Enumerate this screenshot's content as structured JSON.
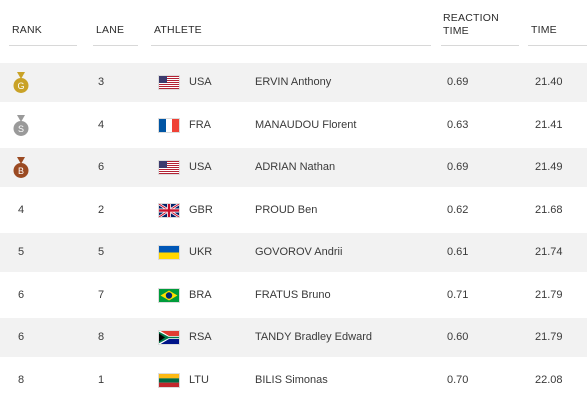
{
  "headers": {
    "rank": "RANK",
    "lane": "LANE",
    "athlete": "ATHLETE",
    "reaction_line1": "REACTION",
    "reaction_line2": "TIME",
    "time": "TIME"
  },
  "rows": [
    {
      "rank": "",
      "medal": "gold",
      "medal_letter": "G",
      "lane": "3",
      "country": "USA",
      "flag": "usa-flag-icon",
      "athlete": "ERVIN Anthony",
      "reaction": "0.69",
      "time": "21.40"
    },
    {
      "rank": "",
      "medal": "silver",
      "medal_letter": "S",
      "lane": "4",
      "country": "FRA",
      "flag": "fra-flag-icon",
      "athlete": "MANAUDOU Florent",
      "reaction": "0.63",
      "time": "21.41"
    },
    {
      "rank": "",
      "medal": "bronze",
      "medal_letter": "B",
      "lane": "6",
      "country": "USA",
      "flag": "usa-flag-icon",
      "athlete": "ADRIAN Nathan",
      "reaction": "0.69",
      "time": "21.49"
    },
    {
      "rank": "4",
      "lane": "2",
      "country": "GBR",
      "flag": "gbr-flag-icon",
      "athlete": "PROUD Ben",
      "reaction": "0.62",
      "time": "21.68"
    },
    {
      "rank": "5",
      "lane": "5",
      "country": "UKR",
      "flag": "ukr-flag-icon",
      "athlete": "GOVOROV Andrii",
      "reaction": "0.61",
      "time": "21.74"
    },
    {
      "rank": "6",
      "lane": "7",
      "country": "BRA",
      "flag": "bra-flag-icon",
      "athlete": "FRATUS Bruno",
      "reaction": "0.71",
      "time": "21.79"
    },
    {
      "rank": "6",
      "lane": "8",
      "country": "RSA",
      "flag": "rsa-flag-icon",
      "athlete": "TANDY Bradley Edward",
      "reaction": "0.60",
      "time": "21.79"
    },
    {
      "rank": "8",
      "lane": "1",
      "country": "LTU",
      "flag": "ltu-flag-icon",
      "athlete": "BILIS Simonas",
      "reaction": "0.70",
      "time": "22.08"
    }
  ],
  "colors": {
    "gold": "#c9a227",
    "silver": "#9a9a9a",
    "bronze": "#9b4a22",
    "row_shade": "#f2f2f2"
  }
}
